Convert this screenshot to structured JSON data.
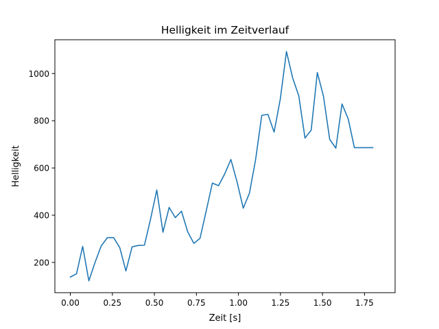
{
  "chart_data": {
    "type": "line",
    "title": "Helligkeit im Zeitverlauf",
    "xlabel": "Zeit [s]",
    "ylabel": "Helligkeit",
    "xlim": [
      -0.092,
      1.932
    ],
    "ylim": [
      72,
      1143
    ],
    "xticks": [
      {
        "value": 0.0,
        "label": "0.00"
      },
      {
        "value": 0.25,
        "label": "0.25"
      },
      {
        "value": 0.5,
        "label": "0.50"
      },
      {
        "value": 0.75,
        "label": "0.75"
      },
      {
        "value": 1.0,
        "label": "1.00"
      },
      {
        "value": 1.25,
        "label": "1.25"
      },
      {
        "value": 1.5,
        "label": "1.50"
      },
      {
        "value": 1.75,
        "label": "1.75"
      }
    ],
    "yticks": [
      {
        "value": 200,
        "label": "200"
      },
      {
        "value": 400,
        "label": "400"
      },
      {
        "value": 600,
        "label": "600"
      },
      {
        "value": 800,
        "label": "800"
      },
      {
        "value": 1000,
        "label": "1000"
      }
    ],
    "grid": false,
    "series": [
      {
        "color": "#1f77b4",
        "x": [
          0.0,
          0.0367,
          0.0735,
          0.1102,
          0.1469,
          0.1837,
          0.2204,
          0.2571,
          0.2939,
          0.3306,
          0.3673,
          0.4041,
          0.4408,
          0.4776,
          0.5143,
          0.551,
          0.5878,
          0.6245,
          0.6612,
          0.698,
          0.7347,
          0.7714,
          0.8082,
          0.8449,
          0.8816,
          0.9184,
          0.9551,
          0.9918,
          1.0286,
          1.0653,
          1.102,
          1.1388,
          1.1755,
          1.2122,
          1.249,
          1.2857,
          1.3224,
          1.3592,
          1.3959,
          1.4327,
          1.4694,
          1.5061,
          1.5429,
          1.5796,
          1.6163,
          1.6531,
          1.6898,
          1.7265,
          1.7633,
          1.8
        ],
        "y": [
          138,
          152,
          268,
          122,
          200,
          270,
          305,
          305,
          263,
          164,
          266,
          272,
          273,
          385,
          507,
          328,
          433,
          390,
          417,
          330,
          281,
          302,
          418,
          536,
          525,
          575,
          636,
          541,
          430,
          493,
          635,
          823,
          827,
          752,
          892,
          1093,
          982,
          905,
          727,
          760,
          1004,
          903,
          721,
          684,
          871,
          808,
          686,
          686,
          686,
          686
        ]
      }
    ]
  }
}
